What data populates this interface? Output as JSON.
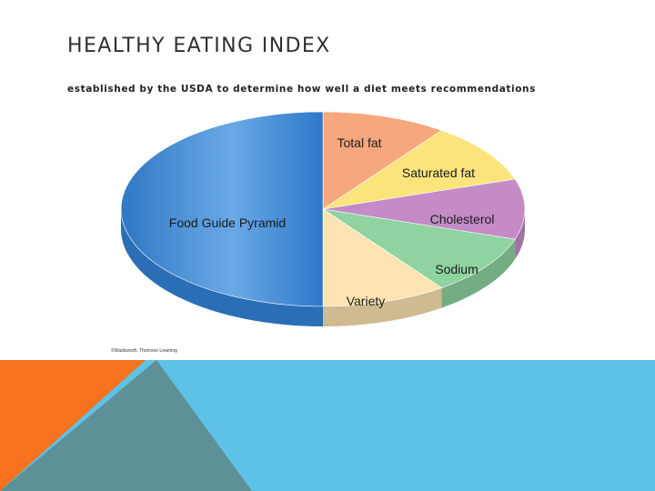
{
  "slide": {
    "title": "HEALTHY EATING INDEX",
    "subtitle": "established by the USDA to determine how well a diet meets recommendations",
    "copyright": "©Wadsworth, Thomson Learning"
  },
  "colors": {
    "footer_blue": "#5ec1e6",
    "footer_slate": "#5e9097",
    "footer_orange": "#f6721f"
  },
  "chart_data": {
    "type": "pie",
    "title": "HEALTHY EATING INDEX",
    "subtitle": "established by the USDA to determine how well a diet meets recommendations",
    "slices": [
      {
        "name": "Total fat",
        "value": 10,
        "color": "#f7a77d"
      },
      {
        "name": "Saturated fat",
        "value": 10,
        "color": "#fbe47c"
      },
      {
        "name": "Cholesterol",
        "value": 10,
        "color": "#c48bc7"
      },
      {
        "name": "Sodium",
        "value": 10,
        "color": "#8fd3a0"
      },
      {
        "name": "Variety",
        "value": 10,
        "color": "#fde3b1"
      },
      {
        "name": "Food Guide Pyramid",
        "value": 50,
        "color": "#4b94d8"
      }
    ]
  }
}
